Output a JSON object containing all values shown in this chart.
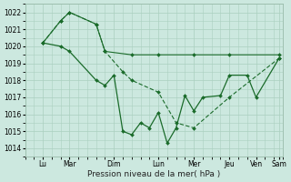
{
  "background_color": "#cce8df",
  "grid_color": "#aacfbf",
  "line_color": "#1a6b2a",
  "xlabel": "Pression niveau de la mer( hPa )",
  "ylim": [
    1013.5,
    1022.5
  ],
  "yticks": [
    1014,
    1015,
    1016,
    1017,
    1018,
    1019,
    1020,
    1021,
    1022
  ],
  "xlim": [
    -0.5,
    14.0
  ],
  "day_ticks": [
    0.5,
    2.0,
    4.5,
    7.0,
    9.0,
    11.0,
    12.5,
    13.8
  ],
  "day_labels": [
    "Lu",
    "Mar",
    "Dim",
    "Lun",
    "Mer",
    "Jeu",
    "Ven",
    "Sam"
  ],
  "s1_x": [
    0.5,
    1.5,
    2.0,
    3.5,
    4.0,
    5.5,
    7.0,
    9.0,
    11.0,
    13.8
  ],
  "s1_y": [
    1020.2,
    1021.5,
    1022.0,
    1021.3,
    1019.7,
    1019.5,
    1019.5,
    1019.5,
    1019.5,
    1019.5
  ],
  "s2_x": [
    0.5,
    1.5,
    2.0,
    3.5,
    4.0,
    5.0,
    5.5,
    7.0,
    8.0,
    9.0,
    11.0,
    13.8
  ],
  "s2_y": [
    1020.2,
    1021.5,
    1022.0,
    1021.3,
    1019.7,
    1018.5,
    1018.0,
    1017.3,
    1015.5,
    1015.2,
    1017.0,
    1019.3
  ],
  "s3_x": [
    0.5,
    1.5,
    2.0,
    3.5,
    4.0,
    4.5,
    5.0,
    5.5,
    6.0,
    6.5,
    7.0,
    7.5,
    8.0,
    8.5,
    9.0,
    9.5,
    10.5,
    11.0,
    12.0,
    12.5,
    13.8
  ],
  "s3_y": [
    1020.2,
    1020.0,
    1019.7,
    1018.0,
    1017.7,
    1018.3,
    1015.0,
    1014.8,
    1015.5,
    1015.2,
    1016.1,
    1014.3,
    1015.2,
    1017.1,
    1016.2,
    1017.0,
    1017.1,
    1018.3,
    1018.3,
    1017.0,
    1019.3
  ],
  "figsize": [
    3.2,
    2.0
  ],
  "dpi": 100
}
